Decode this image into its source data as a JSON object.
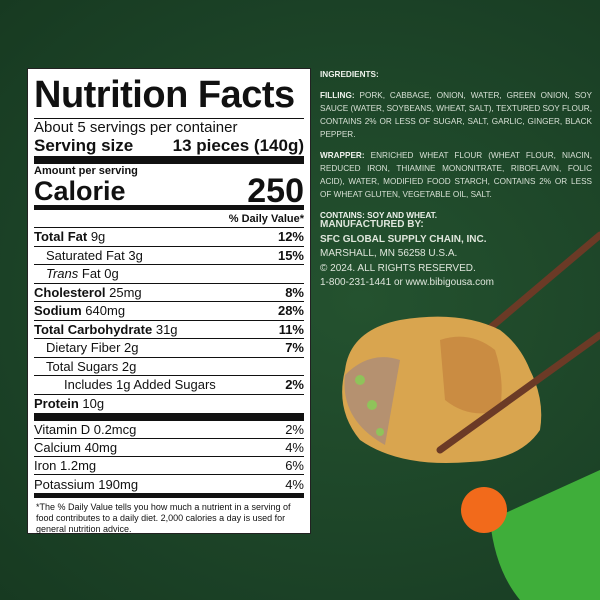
{
  "nutrition": {
    "title": "Nutrition Facts",
    "servings": "About 5 servings per container",
    "serving_size_label": "Serving size",
    "serving_size_value": "13 pieces (140g)",
    "amount_per_serving": "Amount per serving",
    "calorie_label": "Calorie",
    "calorie_value": "250",
    "daily_value_header": "% Daily Value*",
    "rows": [
      {
        "label": "Total Fat",
        "amount": "9g",
        "dv": "12%"
      },
      {
        "label": "Saturated Fat",
        "amount": "3g",
        "dv": "15%"
      },
      {
        "label": "Trans",
        "amount": "Fat 0g",
        "dv": ""
      },
      {
        "label": "Cholesterol",
        "amount": "25mg",
        "dv": "8%"
      },
      {
        "label": "Sodium",
        "amount": "640mg",
        "dv": "28%"
      },
      {
        "label": "Total Carbohydrate",
        "amount": "31g",
        "dv": "11%"
      },
      {
        "label": "Dietary Fiber",
        "amount": "2g",
        "dv": "7%"
      },
      {
        "label": "Total Sugars",
        "amount": "2g",
        "dv": ""
      },
      {
        "label": "Includes 1g Added Sugars",
        "amount": "",
        "dv": "2%"
      },
      {
        "label": "Protein",
        "amount": "10g",
        "dv": ""
      }
    ],
    "vitamins": [
      {
        "label": "Vitamin D 0.2mcg",
        "dv": "2%"
      },
      {
        "label": "Calcium 40mg",
        "dv": "4%"
      },
      {
        "label": "Iron 1.2mg",
        "dv": "6%"
      },
      {
        "label": "Potassium 190mg",
        "dv": "4%"
      }
    ],
    "footnote": "*The % Daily Value tells you how much a nutrient in a serving of food contributes to a daily diet. 2,000 calories a day is used for general nutrition advice."
  },
  "ingredients": {
    "heading": "INGREDIENTS:",
    "filling_label": "FILLING:",
    "filling": "PORK, CABBAGE, ONION, WATER, GREEN ONION, SOY SAUCE (WATER, SOYBEANS, WHEAT, SALT), TEXTURED SOY FLOUR, CONTAINS 2% OR LESS OF SUGAR, SALT, GARLIC, GINGER, BLACK PEPPER.",
    "wrapper_label": "WRAPPER:",
    "wrapper": "ENRICHED WHEAT FLOUR (WHEAT FLOUR, NIACIN, REDUCED IRON, THIAMINE MONONITRATE, RIBOFLAVIN, FOLIC ACID), WATER, MODIFIED FOOD STARCH, CONTAINS 2% OR LESS OF WHEAT GLUTEN, VEGETABLE OIL, SALT.",
    "contains": "CONTAINS: SOY AND WHEAT."
  },
  "manufacturer": {
    "heading": "MANUFACTURED BY:",
    "name": "SFC GLOBAL SUPPLY CHAIN, INC.",
    "address": "MARSHALL, MN 56258 U.S.A.",
    "copyright": "© 2024. ALL RIGHTS RESERVED.",
    "contact": "1-800-231-1441 or www.bibigousa.com"
  },
  "colors": {
    "background": "#1e4628",
    "orange": "#f26a1b",
    "green": "#3fae3a",
    "chopsticks": "#6b3a26"
  }
}
